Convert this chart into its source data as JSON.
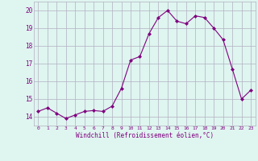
{
  "x": [
    0,
    1,
    2,
    3,
    4,
    5,
    6,
    7,
    8,
    9,
    10,
    11,
    12,
    13,
    14,
    15,
    16,
    17,
    18,
    19,
    20,
    21,
    22,
    23
  ],
  "y": [
    14.3,
    14.5,
    14.2,
    13.9,
    14.1,
    14.3,
    14.35,
    14.3,
    14.6,
    15.6,
    17.2,
    17.4,
    18.7,
    19.6,
    20.0,
    19.4,
    19.25,
    19.7,
    19.6,
    19.0,
    18.35,
    16.7,
    15.0,
    15.5
  ],
  "line_color": "#800080",
  "marker": "D",
  "markersize": 2.0,
  "linewidth": 0.8,
  "bg_color": "#dff5f0",
  "grid_color": "#b0b0c0",
  "xlabel": "Windchill (Refroidissement éolien,°C)",
  "xlabel_color": "#800080",
  "tick_color": "#800080",
  "ylim": [
    13.5,
    20.5
  ],
  "yticks": [
    14,
    15,
    16,
    17,
    18,
    19,
    20
  ],
  "xlim": [
    -0.5,
    23.5
  ],
  "xtick_labels": [
    "0",
    "1",
    "2",
    "3",
    "4",
    "5",
    "6",
    "7",
    "8",
    "9",
    "10",
    "11",
    "12",
    "13",
    "14",
    "15",
    "16",
    "17",
    "18",
    "19",
    "20",
    "21",
    "22",
    "23"
  ]
}
